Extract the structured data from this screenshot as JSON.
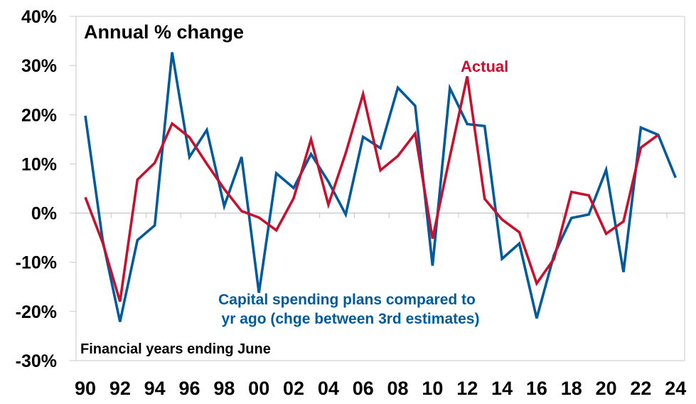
{
  "chart_data": {
    "type": "line",
    "title": "Annual % change",
    "xlabel": "Financial years ending June",
    "ylabel": "",
    "x": [
      "90",
      "91",
      "92",
      "93",
      "94",
      "95",
      "96",
      "97",
      "98",
      "99",
      "00",
      "01",
      "02",
      "03",
      "04",
      "05",
      "06",
      "07",
      "08",
      "09",
      "10",
      "11",
      "12",
      "13",
      "14",
      "15",
      "16",
      "17",
      "18",
      "19",
      "20",
      "21",
      "22",
      "23",
      "24"
    ],
    "x_tick_labels": [
      "90",
      "92",
      "94",
      "96",
      "98",
      "00",
      "02",
      "04",
      "06",
      "08",
      "10",
      "12",
      "14",
      "16",
      "18",
      "20",
      "22",
      "24"
    ],
    "ylim": [
      -30,
      40
    ],
    "y_ticks": [
      -30,
      -20,
      -10,
      0,
      10,
      20,
      30,
      40
    ],
    "y_tick_labels": [
      "-30%",
      "-20%",
      "-10%",
      "0%",
      "10%",
      "20%",
      "30%",
      "40%"
    ],
    "grid": false,
    "series": [
      {
        "name": "Capital spending plans compared to yr ago (chge between 3rd estimates)",
        "label_lines": [
          "Capital spending plans compared to",
          "yr ago (chge between 3rd estimates)"
        ],
        "color": "#005A9C",
        "values": [
          19.8,
          -5.5,
          -22.1,
          -5.5,
          -2.5,
          32.7,
          11.4,
          16.9,
          1.4,
          11.4,
          -16.2,
          8.1,
          5.1,
          12.0,
          6.4,
          -0.3,
          15.5,
          13.2,
          25.5,
          21.8,
          -10.7,
          25.4,
          18.1,
          17.7,
          -9.3,
          -6.2,
          -21.4,
          -8.5,
          -1.0,
          -0.3,
          8.8,
          -12.0,
          17.4,
          15.9,
          7.2
        ]
      },
      {
        "name": "Actual",
        "label_lines": [
          "Actual"
        ],
        "color": "#C8102E",
        "values": [
          3.2,
          -6.0,
          -18.0,
          6.8,
          10.2,
          18.2,
          15.4,
          10.0,
          4.9,
          0.4,
          -0.9,
          -3.5,
          3.0,
          15.0,
          1.7,
          12.2,
          24.2,
          8.7,
          11.6,
          16.2,
          -5.2,
          11.5,
          27.8,
          2.9,
          -1.3,
          -3.9,
          -14.3,
          -9.3,
          4.3,
          3.6,
          -4.2,
          -1.7,
          13.3,
          15.9,
          null
        ]
      }
    ]
  }
}
